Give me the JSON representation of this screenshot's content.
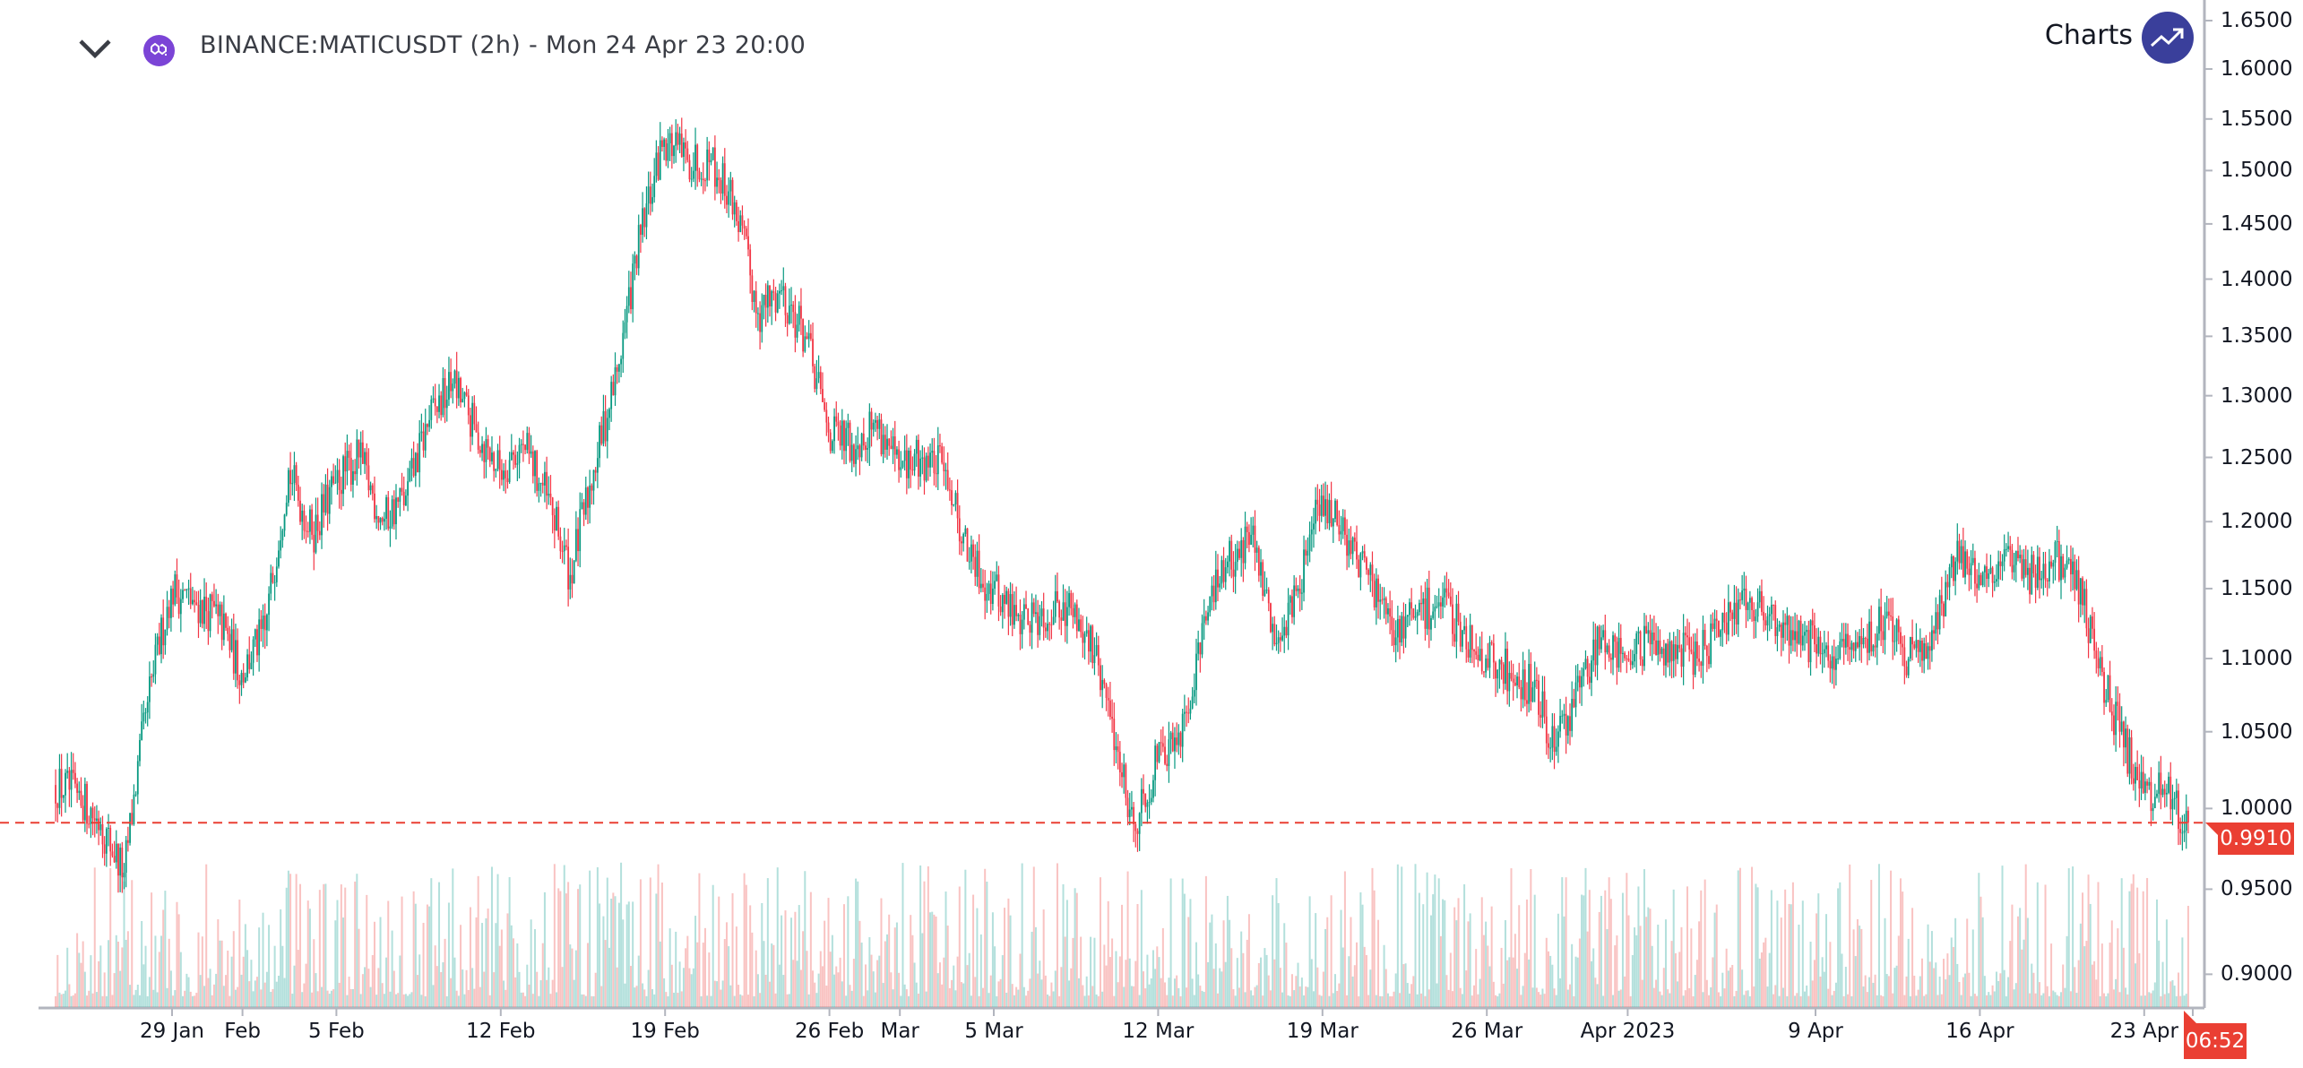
{
  "header": {
    "title": "BINANCE:MATICUSDT (2h) - Mon 24 Apr 23 20:00",
    "symbol_icon": "polygon-matic-icon",
    "collapse_icon": "chevron-down-icon"
  },
  "branding": {
    "text": "Charts",
    "icon": "trending-up-icon",
    "color": "#3a3f9b"
  },
  "colors": {
    "up": "#089981",
    "down": "#f23645",
    "price_line": "#ea3f33",
    "axis": "#b2b5be"
  },
  "chart_data": {
    "type": "candlestick",
    "interval": "2h",
    "scale": "log",
    "grid": false,
    "ylim": [
      0.9,
      1.65
    ],
    "y_ticks": [
      "1.6500",
      "1.6000",
      "1.5500",
      "1.5000",
      "1.4500",
      "1.4000",
      "1.3500",
      "1.3000",
      "1.2500",
      "1.2000",
      "1.1500",
      "1.1000",
      "1.0500",
      "1.0000",
      "0.9500",
      "0.9000"
    ],
    "x_ticks": [
      {
        "label": "29 Jan",
        "date": "2023-01-29"
      },
      {
        "label": "Feb",
        "date": "2023-02-01"
      },
      {
        "label": "5 Feb",
        "date": "2023-02-05"
      },
      {
        "label": "12 Feb",
        "date": "2023-02-12"
      },
      {
        "label": "19 Feb",
        "date": "2023-02-19"
      },
      {
        "label": "26 Feb",
        "date": "2023-02-26"
      },
      {
        "label": "Mar",
        "date": "2023-03-01"
      },
      {
        "label": "5 Mar",
        "date": "2023-03-05"
      },
      {
        "label": "12 Mar",
        "date": "2023-03-12"
      },
      {
        "label": "19 Mar",
        "date": "2023-03-19"
      },
      {
        "label": "26 Mar",
        "date": "2023-03-26"
      },
      {
        "label": "Apr 2023",
        "date": "2023-04-01"
      },
      {
        "label": "9 Apr",
        "date": "2023-04-09"
      },
      {
        "label": "16 Apr",
        "date": "2023-04-16"
      },
      {
        "label": "23 Apr",
        "date": "2023-04-23"
      }
    ],
    "daily_close": [
      [
        "2023-01-24",
        1.01
      ],
      [
        "2023-01-25",
        0.99
      ],
      [
        "2023-01-26",
        0.96
      ],
      [
        "2023-01-27",
        1.07
      ],
      [
        "2023-01-28",
        1.15
      ],
      [
        "2023-01-29",
        1.14
      ],
      [
        "2023-01-30",
        1.13
      ],
      [
        "2023-01-31",
        1.09
      ],
      [
        "2023-02-01",
        1.12
      ],
      [
        "2023-02-02",
        1.24
      ],
      [
        "2023-02-03",
        1.19
      ],
      [
        "2023-02-04",
        1.23
      ],
      [
        "2023-02-05",
        1.25
      ],
      [
        "2023-02-06",
        1.2
      ],
      [
        "2023-02-07",
        1.22
      ],
      [
        "2023-02-08",
        1.28
      ],
      [
        "2023-02-09",
        1.31
      ],
      [
        "2023-02-10",
        1.27
      ],
      [
        "2023-02-11",
        1.24
      ],
      [
        "2023-02-12",
        1.26
      ],
      [
        "2023-02-13",
        1.22
      ],
      [
        "2023-02-14",
        1.16
      ],
      [
        "2023-02-15",
        1.24
      ],
      [
        "2023-02-16",
        1.32
      ],
      [
        "2023-02-17",
        1.44
      ],
      [
        "2023-02-18",
        1.53
      ],
      [
        "2023-02-19",
        1.51
      ],
      [
        "2023-02-20",
        1.51
      ],
      [
        "2023-02-21",
        1.47
      ],
      [
        "2023-02-22",
        1.37
      ],
      [
        "2023-02-23",
        1.39
      ],
      [
        "2023-02-24",
        1.35
      ],
      [
        "2023-02-25",
        1.27
      ],
      [
        "2023-02-26",
        1.26
      ],
      [
        "2023-02-27",
        1.28
      ],
      [
        "2023-02-28",
        1.24
      ],
      [
        "2023-03-01",
        1.25
      ],
      [
        "2023-03-02",
        1.24
      ],
      [
        "2023-03-03",
        1.17
      ],
      [
        "2023-03-04",
        1.15
      ],
      [
        "2023-03-05",
        1.13
      ],
      [
        "2023-03-06",
        1.13
      ],
      [
        "2023-03-07",
        1.14
      ],
      [
        "2023-03-08",
        1.12
      ],
      [
        "2023-03-09",
        1.06
      ],
      [
        "2023-03-10",
        0.99
      ],
      [
        "2023-03-11",
        1.03
      ],
      [
        "2023-03-12",
        1.04
      ],
      [
        "2023-03-13",
        1.13
      ],
      [
        "2023-03-14",
        1.17
      ],
      [
        "2023-03-15",
        1.19
      ],
      [
        "2023-03-16",
        1.11
      ],
      [
        "2023-03-17",
        1.15
      ],
      [
        "2023-03-18",
        1.22
      ],
      [
        "2023-03-19",
        1.19
      ],
      [
        "2023-03-20",
        1.16
      ],
      [
        "2023-03-21",
        1.12
      ],
      [
        "2023-03-22",
        1.13
      ],
      [
        "2023-03-23",
        1.14
      ],
      [
        "2023-03-24",
        1.12
      ],
      [
        "2023-03-25",
        1.1
      ],
      [
        "2023-03-26",
        1.09
      ],
      [
        "2023-03-27",
        1.08
      ],
      [
        "2023-03-28",
        1.04
      ],
      [
        "2023-03-29",
        1.08
      ],
      [
        "2023-03-30",
        1.12
      ],
      [
        "2023-03-31",
        1.1
      ],
      [
        "2023-04-01",
        1.11
      ],
      [
        "2023-04-02",
        1.11
      ],
      [
        "2023-04-03",
        1.1
      ],
      [
        "2023-04-04",
        1.12
      ],
      [
        "2023-04-05",
        1.15
      ],
      [
        "2023-04-06",
        1.13
      ],
      [
        "2023-04-07",
        1.12
      ],
      [
        "2023-04-08",
        1.11
      ],
      [
        "2023-04-09",
        1.1
      ],
      [
        "2023-04-10",
        1.11
      ],
      [
        "2023-04-11",
        1.13
      ],
      [
        "2023-04-12",
        1.1
      ],
      [
        "2023-04-13",
        1.12
      ],
      [
        "2023-04-14",
        1.17
      ],
      [
        "2023-04-15",
        1.16
      ],
      [
        "2023-04-16",
        1.17
      ],
      [
        "2023-04-17",
        1.16
      ],
      [
        "2023-04-18",
        1.17
      ],
      [
        "2023-04-19",
        1.17
      ],
      [
        "2023-04-20",
        1.1
      ],
      [
        "2023-04-21",
        1.05
      ],
      [
        "2023-04-22",
        1.01
      ],
      [
        "2023-04-23",
        1.01
      ],
      [
        "2023-04-24",
        0.991
      ]
    ],
    "last_price": "0.9910",
    "bar_countdown": "06:52"
  }
}
